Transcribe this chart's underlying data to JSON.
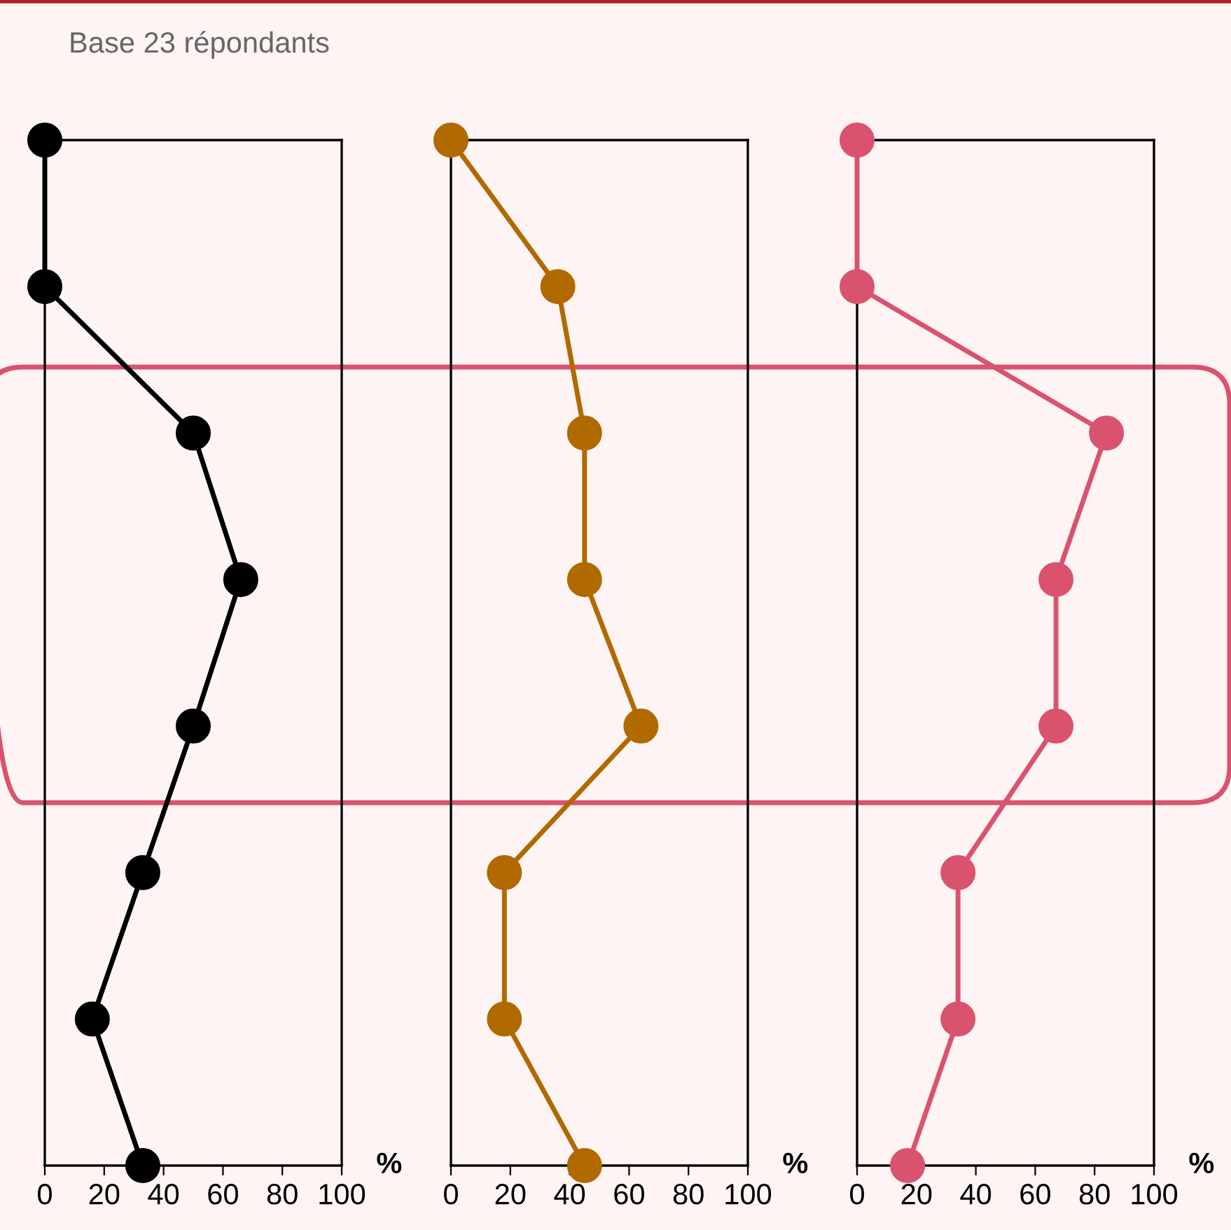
{
  "chart_data": [
    {
      "type": "line",
      "orientation": "horizontal",
      "categories": [
        null,
        null,
        null,
        null,
        null,
        null,
        null,
        null
      ],
      "series": [
        {
          "color": "#000000",
          "values": [
            0,
            0,
            50,
            66,
            50,
            33,
            16,
            33
          ]
        }
      ],
      "xlim": [
        0,
        100
      ],
      "xticks": [
        0,
        20,
        40,
        60,
        80,
        100
      ],
      "xlabel": "%",
      "marker": "circle",
      "line_style": "solid",
      "annotations": [
        "Base 23 répondants"
      ]
    },
    {
      "type": "line",
      "orientation": "horizontal",
      "categories": [
        null,
        null,
        null,
        null,
        null,
        null,
        null,
        null
      ],
      "series": [
        {
          "color": "#b06a00",
          "values": [
            0,
            36,
            45,
            45,
            64,
            18,
            18,
            45
          ]
        }
      ],
      "xlim": [
        0,
        100
      ],
      "xticks": [
        0,
        20,
        40,
        60,
        80,
        100
      ],
      "xlabel": "%",
      "marker": "circle",
      "line_style": "solid"
    },
    {
      "type": "line",
      "orientation": "horizontal",
      "categories": [
        null,
        null,
        null,
        null,
        null,
        null,
        null,
        null
      ],
      "series": [
        {
          "color": "#d9536f",
          "values": [
            0,
            0,
            84,
            67,
            67,
            34,
            34,
            17
          ]
        }
      ],
      "xlim": [
        0,
        100
      ],
      "xticks": [
        0,
        20,
        40,
        60,
        80,
        100
      ],
      "xlabel": "%",
      "marker": "circle",
      "line_style": "solid"
    }
  ]
}
